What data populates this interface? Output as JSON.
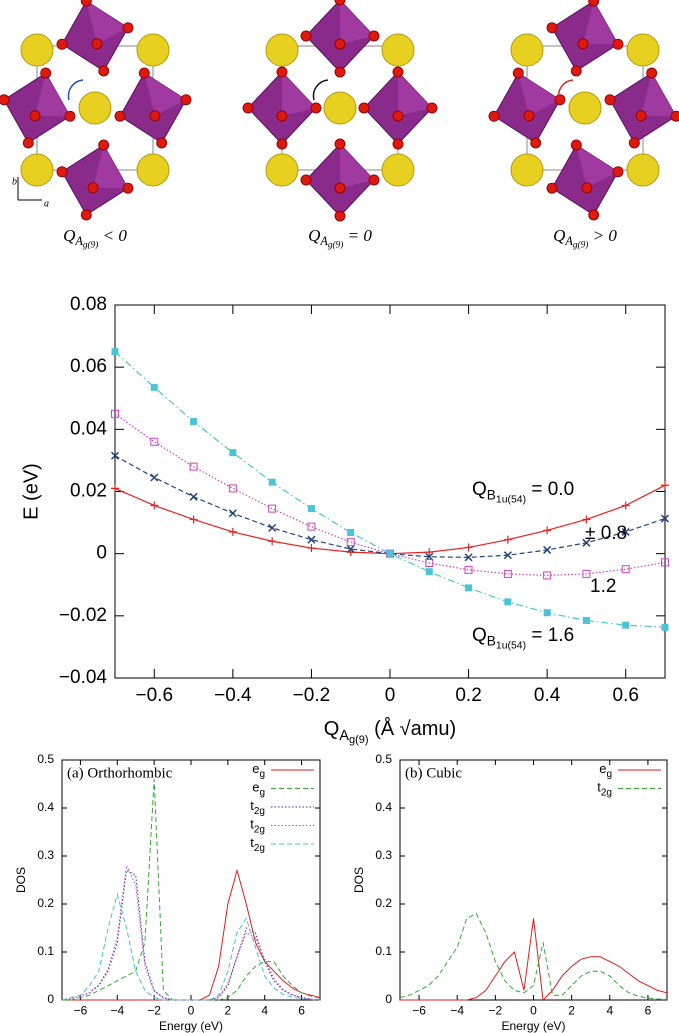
{
  "figure": {
    "structures": [
      {
        "label": {
          "main": "Q",
          "sub": "A",
          "subsub": "g(9)",
          "tail": " < 0"
        }
      },
      {
        "label": {
          "main": "Q",
          "sub": "A",
          "subsub": "g(9)",
          "tail": " = 0"
        }
      },
      {
        "label": {
          "main": "Q",
          "sub": "A",
          "subsub": "g(9)",
          "tail": " > 0"
        }
      }
    ],
    "axis_b": "b",
    "axis_a": "a"
  },
  "chart_data": [
    {
      "type": "line",
      "x_label": {
        "main": "Q",
        "sub": "A",
        "subsub": "g(9)",
        "tail": " (Å √amu)"
      },
      "y_label": "E (eV)",
      "x": [
        -0.7,
        -0.6,
        -0.5,
        -0.4,
        -0.3,
        -0.2,
        -0.1,
        0,
        0.1,
        0.2,
        0.3,
        0.4,
        0.5,
        0.6,
        0.7
      ],
      "xlim": [
        -0.7,
        0.7
      ],
      "xticks": [
        {
          "value": -0.6,
          "label": "−0.6"
        },
        {
          "value": -0.4,
          "label": "−0.4"
        },
        {
          "value": -0.2,
          "label": "−0.2"
        },
        0,
        0.2,
        0.4,
        0.6
      ],
      "ylim": [
        -0.04,
        0.08
      ],
      "yticks": [
        {
          "value": -0.04,
          "label": "−0.04"
        },
        {
          "value": -0.02,
          "label": "−0.02"
        },
        0,
        0.02,
        0.04,
        0.06,
        0.08
      ],
      "series": [
        {
          "color": "#e82020",
          "marker": "plus",
          "line_style": "solid",
          "values": [
            0.021,
            0.0155,
            0.011,
            0.007,
            0.004,
            0.0018,
            0.0005,
            0,
            0.0005,
            0.002,
            0.0045,
            0.0075,
            0.011,
            0.0155,
            0.022
          ]
        },
        {
          "color": "#23447a",
          "marker": "cross",
          "line_style": "dashed",
          "values": [
            0.0315,
            0.0245,
            0.0183,
            0.013,
            0.0083,
            0.0045,
            0.0015,
            0,
            -0.001,
            -0.0012,
            -0.0005,
            0.0012,
            0.0035,
            0.007,
            0.0113
          ]
        },
        {
          "color": "#d040c0",
          "marker": "open-square",
          "line_style": "dotted",
          "values": [
            0.045,
            0.036,
            0.028,
            0.021,
            0.0145,
            0.0087,
            0.0037,
            0,
            -0.003,
            -0.0052,
            -0.0065,
            -0.007,
            -0.0065,
            -0.005,
            -0.0028
          ]
        },
        {
          "color": "#4cc3d6",
          "marker": "square",
          "line_style": "dashdot",
          "values": [
            0.065,
            0.0535,
            0.0425,
            0.0325,
            0.023,
            0.0145,
            0.0068,
            0,
            -0.0058,
            -0.011,
            -0.0155,
            -0.019,
            -0.0215,
            -0.023,
            -0.0237
          ]
        }
      ],
      "annotations": [
        {
          "main": "Q",
          "sub": "B",
          "subsub": "1u(54)",
          "tail": " = 0.0"
        },
        {
          "main": "± 0.8"
        },
        {
          "main": "1.2"
        },
        {
          "main": "Q",
          "sub": "B",
          "subsub": "1u(54)",
          "tail": " = 1.6"
        }
      ]
    },
    {
      "type": "line",
      "panel_label": "(a) Orthorhombic",
      "x_label": "Energy (eV)",
      "y_label": "DOS",
      "x": [
        -7,
        -6.5,
        -6,
        -5.5,
        -5,
        -4.5,
        -4,
        -3.5,
        -3,
        -2.5,
        -2,
        -1.5,
        -1,
        -0.5,
        0,
        0.5,
        1,
        1.5,
        2,
        2.5,
        3,
        3.5,
        4,
        4.5,
        5,
        5.5,
        6,
        6.5,
        7
      ],
      "xlim": [
        -7,
        7
      ],
      "xticks": [
        {
          "value": -6,
          "label": "−6"
        },
        {
          "value": -4,
          "label": "−4"
        },
        {
          "value": -2,
          "label": "−2"
        },
        0,
        2,
        4,
        6
      ],
      "ylim": [
        0,
        0.5
      ],
      "yticks": [
        0,
        0.1,
        0.2,
        0.3,
        0.4,
        0.5
      ],
      "legend": "upper right",
      "series": [
        {
          "name": "e",
          "sub": "g",
          "color": "#e31a1c",
          "line_style": "solid",
          "values": [
            0,
            0,
            0,
            0,
            0,
            0,
            0,
            0,
            0,
            0,
            0,
            0,
            0,
            0,
            0,
            0,
            0.01,
            0.07,
            0.2,
            0.27,
            0.2,
            0.12,
            0.08,
            0.06,
            0.04,
            0.025,
            0.015,
            0.01,
            0.005
          ]
        },
        {
          "name": "e",
          "sub": "g",
          "color": "#33aa33",
          "line_style": "dashed",
          "values": [
            0,
            0,
            0.005,
            0.01,
            0.02,
            0.03,
            0.04,
            0.05,
            0.06,
            0.12,
            0.46,
            0.02,
            0,
            0,
            0,
            0,
            0,
            0,
            0.005,
            0.02,
            0.05,
            0.07,
            0.08,
            0.08,
            0.05,
            0.03,
            0.015,
            0.008,
            0.004
          ]
        },
        {
          "name": "t",
          "sub": "2g",
          "color": "#3333aa",
          "line_style": "dotted",
          "values": [
            0,
            0.003,
            0.008,
            0.015,
            0.03,
            0.06,
            0.12,
            0.27,
            0.26,
            0.08,
            0.02,
            0.005,
            0,
            0,
            0,
            0,
            0,
            0.005,
            0.03,
            0.09,
            0.15,
            0.14,
            0.08,
            0.04,
            0.02,
            0.01,
            0.005,
            0.002,
            0
          ]
        },
        {
          "name": "t",
          "sub": "2g",
          "color": "#d040c0",
          "line_style": "dotted",
          "values": [
            0,
            0.003,
            0.008,
            0.016,
            0.032,
            0.065,
            0.13,
            0.28,
            0.24,
            0.07,
            0.018,
            0.004,
            0,
            0,
            0,
            0,
            0,
            0.006,
            0.035,
            0.09,
            0.14,
            0.13,
            0.085,
            0.045,
            0.022,
            0.011,
            0.005,
            0.002,
            0
          ]
        },
        {
          "name": "t",
          "sub": "2g",
          "color": "#40c0d8",
          "line_style": "dashed",
          "values": [
            0,
            0.005,
            0.01,
            0.03,
            0.06,
            0.15,
            0.22,
            0.15,
            0.06,
            0.02,
            0.005,
            0,
            0,
            0,
            0,
            0,
            0,
            0.01,
            0.06,
            0.14,
            0.17,
            0.11,
            0.05,
            0.025,
            0.012,
            0.006,
            0.003,
            0.001,
            0
          ]
        }
      ]
    },
    {
      "type": "line",
      "panel_label": "(b) Cubic",
      "x_label": "Energy (eV)",
      "y_label": "DOS",
      "x": [
        -7,
        -6.5,
        -6,
        -5.5,
        -5,
        -4.5,
        -4,
        -3.5,
        -3,
        -2.5,
        -2,
        -1.5,
        -1,
        -0.5,
        0,
        0.5,
        1,
        1.5,
        2,
        2.5,
        3,
        3.5,
        4,
        4.5,
        5,
        5.5,
        6,
        6.5,
        7
      ],
      "xlim": [
        -7,
        7
      ],
      "xticks": [
        {
          "value": -6,
          "label": "−6"
        },
        {
          "value": -4,
          "label": "−4"
        },
        {
          "value": -2,
          "label": "−2"
        },
        0,
        2,
        4,
        6
      ],
      "ylim": [
        0,
        0.5
      ],
      "yticks": [
        0,
        0.1,
        0.2,
        0.3,
        0.4,
        0.5
      ],
      "legend": "upper right",
      "series": [
        {
          "name": "e",
          "sub": "g",
          "color": "#e31a1c",
          "line_style": "solid",
          "values": [
            0,
            0,
            0,
            0,
            0,
            0,
            0,
            0,
            0.005,
            0.02,
            0.05,
            0.08,
            0.1,
            0.02,
            0.17,
            0,
            0.02,
            0.05,
            0.07,
            0.085,
            0.09,
            0.09,
            0.08,
            0.07,
            0.055,
            0.04,
            0.03,
            0.02,
            0.015
          ]
        },
        {
          "name": "t",
          "sub": "2g",
          "color": "#33aa33",
          "line_style": "dashed",
          "values": [
            0.005,
            0.01,
            0.02,
            0.03,
            0.05,
            0.08,
            0.11,
            0.17,
            0.18,
            0.14,
            0.08,
            0.04,
            0.02,
            0.015,
            0.03,
            0.12,
            0.01,
            0.01,
            0.03,
            0.05,
            0.06,
            0.06,
            0.05,
            0.03,
            0.015,
            0.008,
            0.004,
            0.002,
            0.001
          ]
        }
      ]
    }
  ]
}
